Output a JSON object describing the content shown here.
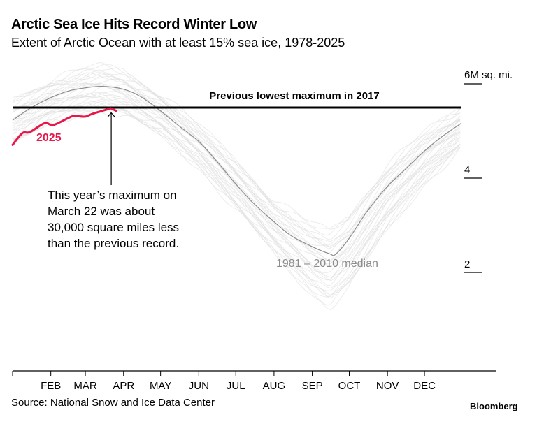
{
  "header": {
    "title": "Arctic Sea Ice Hits Record Winter Low",
    "subtitle": "Extent of Arctic Ocean with at least 15% sea ice, 1978-2025"
  },
  "footer": {
    "source": "Source: National Snow and Ice Data Center",
    "brand": "Bloomberg"
  },
  "chart_data": {
    "type": "line",
    "title": "Arctic Sea Ice Hits Record Winter Low",
    "subtitle": "Extent of Arctic Ocean with at least 15% sea ice, 1978-2025",
    "x_axis": {
      "type": "day-of-year",
      "range": [
        "Jan 1",
        "Dec 31"
      ],
      "tick_labels": [
        "FEB",
        "MAR",
        "APR",
        "MAY",
        "JUN",
        "JUL",
        "AUG",
        "SEP",
        "OCT",
        "NOV",
        "DEC"
      ]
    },
    "y_axis": {
      "unit": "M sq. mi.",
      "range": [
        0,
        6.5
      ],
      "ticks": [
        6,
        4,
        2
      ],
      "tick_labels": [
        "6M sq. mi.",
        "4",
        "2"
      ],
      "position": "right"
    },
    "grid": false,
    "series": [
      {
        "name": "1981 – 2010 median",
        "color": "#8c8c8c",
        "points": [
          [
            "Jan 1",
            5.3
          ],
          [
            "Jan 15",
            5.55
          ],
          [
            "Feb 1",
            5.78
          ],
          [
            "Feb 15",
            5.92
          ],
          [
            "Mar 1",
            5.99
          ],
          [
            "Mar 15",
            6.02
          ],
          [
            "Apr 1",
            5.96
          ],
          [
            "Apr 15",
            5.8
          ],
          [
            "May 1",
            5.5
          ],
          [
            "May 15",
            5.2
          ],
          [
            "Jun 1",
            4.85
          ],
          [
            "Jun 15",
            4.45
          ],
          [
            "Jul 1",
            3.95
          ],
          [
            "Jul 15",
            3.55
          ],
          [
            "Aug 1",
            3.15
          ],
          [
            "Aug 15",
            2.85
          ],
          [
            "Sep 1",
            2.62
          ],
          [
            "Sep 15",
            2.47
          ],
          [
            "Sep 20",
            2.46
          ],
          [
            "Oct 1",
            2.8
          ],
          [
            "Oct 15",
            3.35
          ],
          [
            "Nov 1",
            3.9
          ],
          [
            "Nov 15",
            4.25
          ],
          [
            "Dec 1",
            4.65
          ],
          [
            "Dec 15",
            4.95
          ],
          [
            "Dec 31",
            5.24
          ]
        ]
      },
      {
        "name": "2025",
        "color": "#e8174a",
        "points": [
          [
            "Jan 1",
            4.78
          ],
          [
            "Jan 9",
            5.03
          ],
          [
            "Jan 15",
            5.05
          ],
          [
            "Jan 27",
            5.24
          ],
          [
            "Feb 3",
            5.2
          ],
          [
            "Feb 16",
            5.36
          ],
          [
            "Feb 20",
            5.39
          ],
          [
            "Mar 1",
            5.38
          ],
          [
            "Mar 7",
            5.44
          ],
          [
            "Mar 20",
            5.54
          ],
          [
            "Mar 22",
            5.55
          ],
          [
            "Mar 26",
            5.5
          ]
        ]
      }
    ],
    "historical_range": {
      "label": "1978-2025 yearly lines",
      "color": "#dcdcdc",
      "upper": [
        [
          "Jan 1",
          5.75
        ],
        [
          "Feb 1",
          6.15
        ],
        [
          "Mar 1",
          6.4
        ],
        [
          "Mar 15",
          6.45
        ],
        [
          "Apr 1",
          6.35
        ],
        [
          "May 1",
          5.85
        ],
        [
          "Jun 1",
          5.2
        ],
        [
          "Jul 1",
          4.45
        ],
        [
          "Aug 1",
          3.6
        ],
        [
          "Sep 1",
          3.1
        ],
        [
          "Sep 15",
          2.95
        ],
        [
          "Oct 1",
          3.3
        ],
        [
          "Nov 1",
          4.35
        ],
        [
          "Dec 1",
          5.05
        ],
        [
          "Dec 31",
          5.55
        ]
      ],
      "lower": [
        [
          "Jan 1",
          4.75
        ],
        [
          "Feb 1",
          5.25
        ],
        [
          "Mar 1",
          5.45
        ],
        [
          "Mar 15",
          5.5
        ],
        [
          "Apr 1",
          5.4
        ],
        [
          "May 1",
          5.0
        ],
        [
          "Jun 1",
          4.3
        ],
        [
          "Jul 1",
          3.4
        ],
        [
          "Aug 1",
          2.5
        ],
        [
          "Sep 1",
          1.6
        ],
        [
          "Sep 15",
          1.33
        ],
        [
          "Oct 1",
          1.75
        ],
        [
          "Nov 1",
          3.0
        ],
        [
          "Dec 1",
          3.95
        ],
        [
          "Dec 31",
          4.7
        ]
      ]
    },
    "reference_line": {
      "label": "Previous lowest maximum in 2017",
      "value": 5.57
    },
    "annotations": [
      {
        "text_lines": [
          "This year’s maximum on",
          "March 22 was about",
          "30,000 square miles less",
          "than the previous record."
        ],
        "target": [
          "Mar 22",
          5.55
        ]
      },
      {
        "text": "2025",
        "color": "#e8174a"
      },
      {
        "text": "1981 – 2010 median",
        "color": "#8c8c8c"
      }
    ]
  }
}
